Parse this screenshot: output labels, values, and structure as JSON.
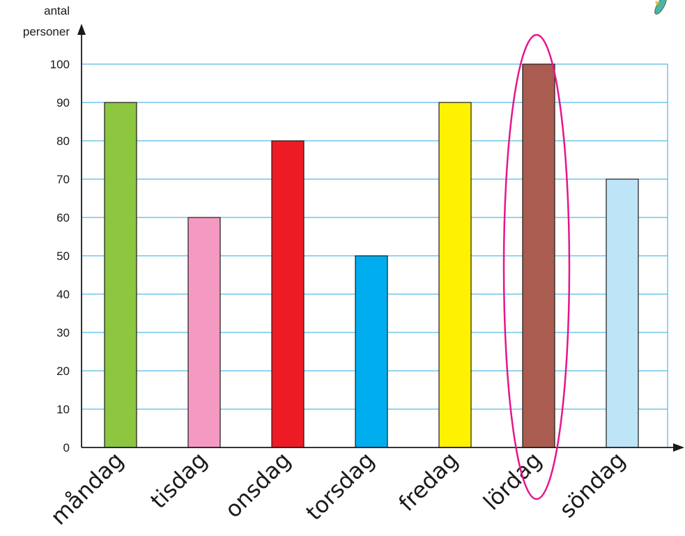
{
  "chart_data": {
    "type": "bar",
    "ylabel_lines": [
      "antal",
      "personer"
    ],
    "categories": [
      "måndag",
      "tisdag",
      "onsdag",
      "torsdag",
      "fredag",
      "lördag",
      "söndag"
    ],
    "values": [
      90,
      60,
      80,
      50,
      90,
      100,
      70
    ],
    "colors": [
      "#8dc63f",
      "#f49ac2",
      "#ed1c24",
      "#00aeef",
      "#fff200",
      "#a95c4f",
      "#bde4f7"
    ],
    "ylim": [
      0,
      100
    ],
    "yticks": [
      0,
      10,
      20,
      30,
      40,
      50,
      60,
      70,
      80,
      90,
      100
    ],
    "grid": true,
    "grid_color": "#29a9df",
    "highlight": {
      "category": "lördag",
      "color": "#e6158d"
    },
    "decoration_icon": "fish-icon"
  }
}
